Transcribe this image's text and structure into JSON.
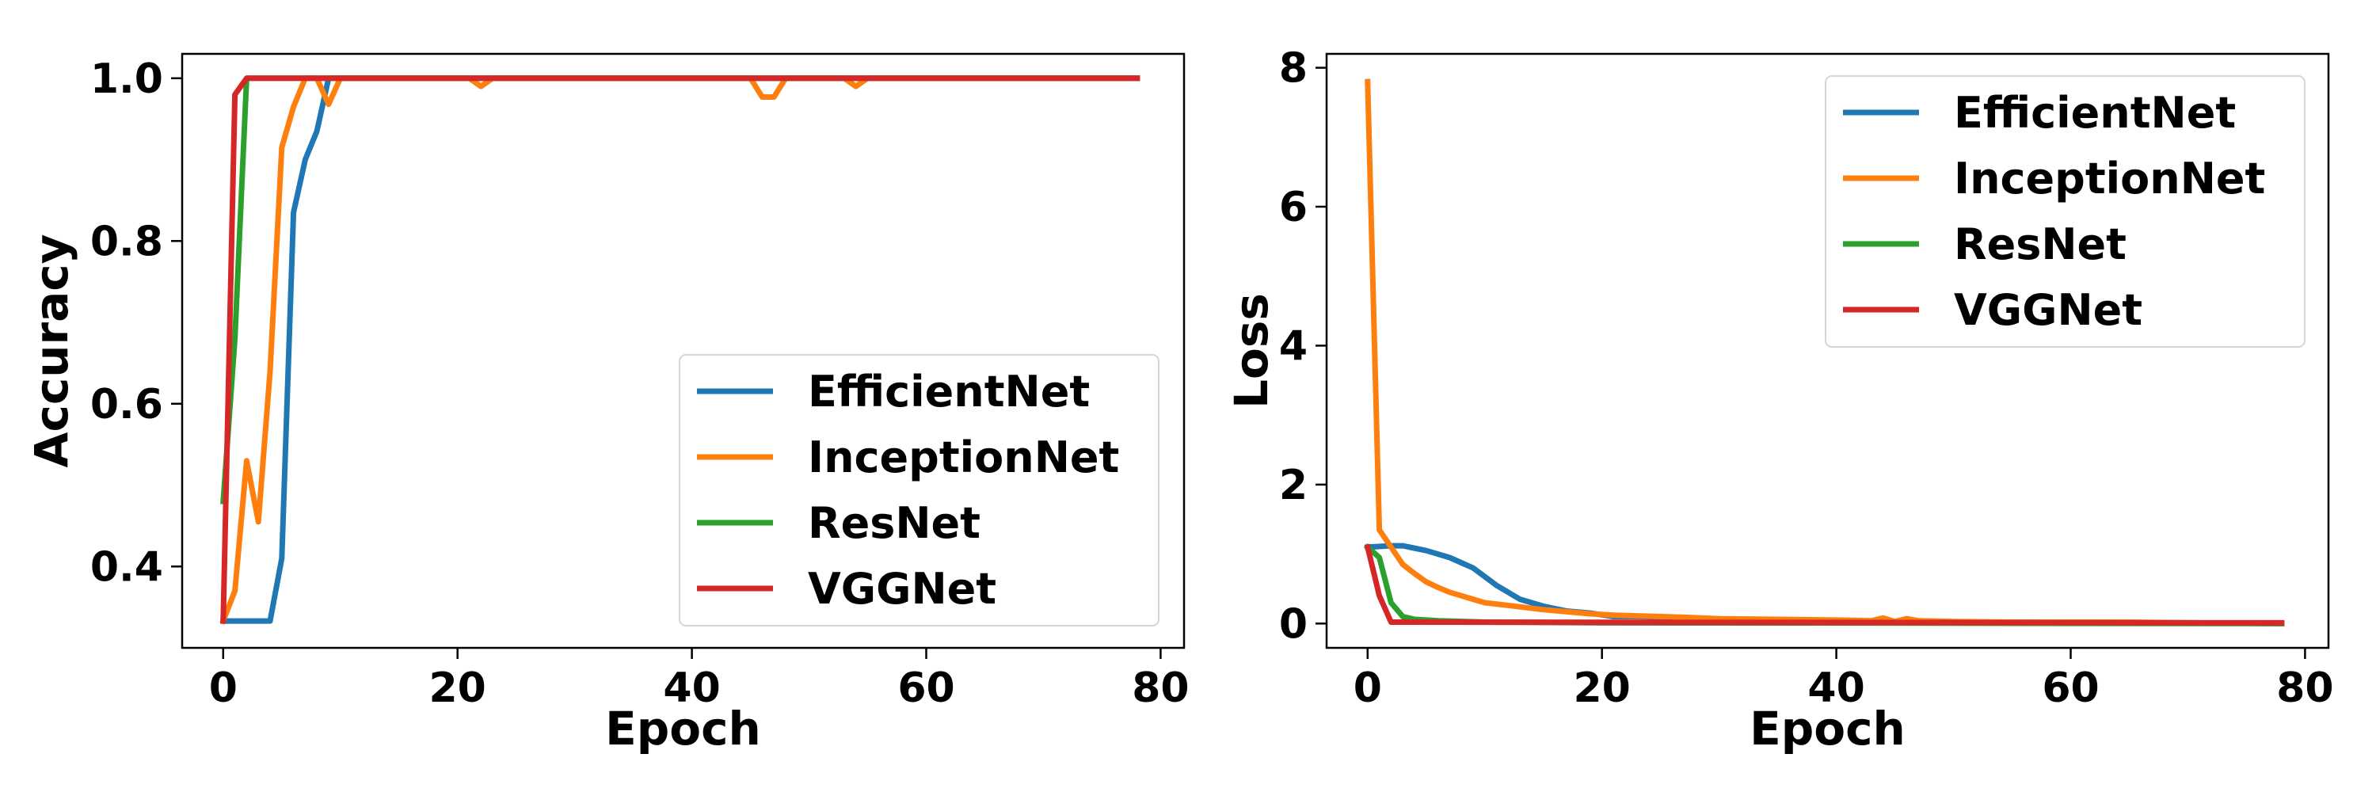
{
  "chart_data": [
    {
      "type": "line",
      "title": "",
      "xlabel": "Epoch",
      "ylabel": "Accuracy",
      "xlim": [
        -3.5,
        82
      ],
      "ylim": [
        0.3,
        1.03
      ],
      "xticks": [
        0,
        20,
        40,
        60,
        80
      ],
      "xtick_labels": [
        "0",
        "20",
        "40",
        "60",
        "80"
      ],
      "yticks": [
        0.4,
        0.6,
        0.8,
        1.0
      ],
      "ytick_labels": [
        "0.4",
        "0.6",
        "0.8",
        "1.0"
      ],
      "grid": false,
      "legend_position": "lower-right",
      "series": [
        {
          "name": "EfficientNet",
          "color": "#1f77b4",
          "x": [
            0,
            1,
            2,
            3,
            4,
            5,
            6,
            7,
            8,
            9,
            10,
            78
          ],
          "y": [
            0.333,
            0.333,
            0.333,
            0.333,
            0.333,
            0.41,
            0.835,
            0.9,
            0.935,
            1.0,
            1.0,
            1.0
          ]
        },
        {
          "name": "InceptionNet",
          "color": "#ff7f0e",
          "x": [
            0,
            1,
            2,
            3,
            4,
            5,
            6,
            7,
            8,
            9,
            10,
            21,
            22,
            23,
            45,
            46,
            47,
            48,
            53,
            54,
            55,
            78
          ],
          "y": [
            0.333,
            0.37,
            0.53,
            0.455,
            0.64,
            0.915,
            0.965,
            1.0,
            1.0,
            0.968,
            1.0,
            1.0,
            0.99,
            1.0,
            1.0,
            0.977,
            0.977,
            1.0,
            1.0,
            0.99,
            1.0,
            1.0
          ]
        },
        {
          "name": "ResNet",
          "color": "#2ca02c",
          "x": [
            0,
            1,
            2,
            78
          ],
          "y": [
            0.48,
            0.68,
            1.0,
            1.0
          ]
        },
        {
          "name": "VGGNet",
          "color": "#d62728",
          "x": [
            0,
            1,
            2,
            78
          ],
          "y": [
            0.333,
            0.98,
            1.0,
            1.0
          ]
        }
      ]
    },
    {
      "type": "line",
      "title": "",
      "xlabel": "Epoch",
      "ylabel": "Loss",
      "xlim": [
        -3.5,
        82
      ],
      "ylim": [
        -0.35,
        8.2
      ],
      "xticks": [
        0,
        20,
        40,
        60,
        80
      ],
      "xtick_labels": [
        "0",
        "20",
        "40",
        "60",
        "80"
      ],
      "yticks": [
        0,
        2,
        4,
        6,
        8
      ],
      "ytick_labels": [
        "0",
        "2",
        "4",
        "6",
        "8"
      ],
      "grid": false,
      "legend_position": "upper-right",
      "series": [
        {
          "name": "EfficientNet",
          "color": "#1f77b4",
          "x": [
            0,
            2,
            3,
            5,
            7,
            9,
            11,
            13,
            15,
            17,
            19,
            21,
            23,
            25,
            27,
            29,
            31,
            35,
            40,
            50,
            60,
            70,
            78
          ],
          "y": [
            1.1,
            1.12,
            1.12,
            1.05,
            0.95,
            0.8,
            0.55,
            0.35,
            0.25,
            0.18,
            0.15,
            0.1,
            0.1,
            0.09,
            0.07,
            0.06,
            0.05,
            0.04,
            0.03,
            0.02,
            0.01,
            0.01,
            0.0
          ]
        },
        {
          "name": "InceptionNet",
          "color": "#ff7f0e",
          "x": [
            0,
            1,
            2,
            3,
            4,
            5,
            6,
            7,
            8,
            9,
            10,
            11,
            13,
            15,
            17,
            19,
            21,
            23,
            25,
            27,
            30,
            35,
            40,
            43,
            44,
            45,
            46,
            47,
            50,
            55,
            60,
            65,
            70,
            78
          ],
          "y": [
            7.8,
            1.35,
            1.1,
            0.85,
            0.72,
            0.6,
            0.52,
            0.45,
            0.4,
            0.35,
            0.3,
            0.28,
            0.24,
            0.2,
            0.17,
            0.14,
            0.12,
            0.11,
            0.1,
            0.09,
            0.07,
            0.06,
            0.05,
            0.04,
            0.08,
            0.03,
            0.07,
            0.04,
            0.03,
            0.02,
            0.02,
            0.02,
            0.01,
            0.0
          ]
        },
        {
          "name": "ResNet",
          "color": "#2ca02c",
          "x": [
            0,
            1,
            2,
            3,
            4,
            6,
            10,
            20,
            78
          ],
          "y": [
            1.1,
            0.95,
            0.3,
            0.1,
            0.06,
            0.04,
            0.02,
            0.01,
            0.0
          ]
        },
        {
          "name": "VGGNet",
          "color": "#d62728",
          "x": [
            0,
            1,
            2,
            78
          ],
          "y": [
            1.1,
            0.4,
            0.02,
            0.01
          ]
        }
      ]
    }
  ]
}
